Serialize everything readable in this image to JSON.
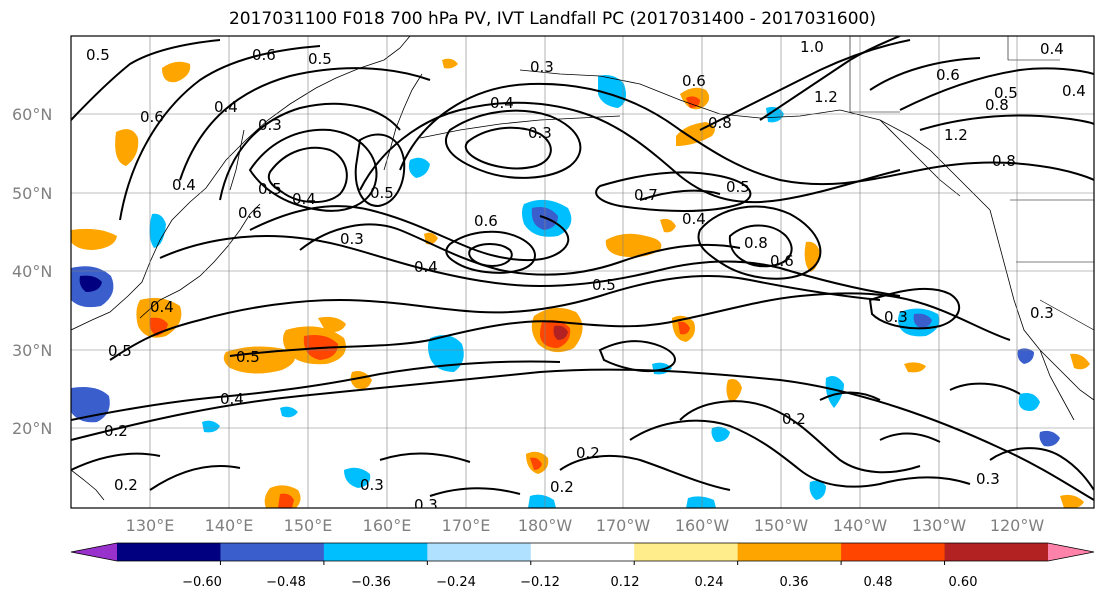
{
  "title": "2017031100 F018 700 hPa PV, IVT Landfall PC (2017031400 - 2017031600)",
  "lat_labels": [
    "60°N",
    "50°N",
    "40°N",
    "30°N",
    "20°N"
  ],
  "lon_labels": [
    "130°E",
    "140°E",
    "150°E",
    "160°E",
    "170°E",
    "180°W",
    "170°W",
    "160°W",
    "150°W",
    "140°W",
    "130°W",
    "120°W"
  ],
  "colorbar": {
    "colors": [
      "#9932cc",
      "#000080",
      "#3a5fcd",
      "#00bfff",
      "#b0e2ff",
      "#ffffff",
      "#ffec8b",
      "#ffa500",
      "#ff4500",
      "#b22222",
      "#ff82ab"
    ],
    "tick_labels": [
      "−0.60",
      "−0.48",
      "−0.36",
      "−0.24",
      "−0.12",
      "0.12",
      "0.24",
      "0.36",
      "0.48",
      "0.60"
    ]
  },
  "contour_labels": [
    "0.6",
    "0.5",
    "0.6",
    "0.4",
    "0.3",
    "0.6",
    "0.5",
    "0.4",
    "0.3",
    "0.4",
    "0.6",
    "0.5",
    "0.4",
    "0.3",
    "0.5",
    "0.4",
    "0.3",
    "0.5",
    "0.4",
    "0.7",
    "0.5",
    "0.4",
    "0.8",
    "0.6",
    "0.5",
    "0.3",
    "0.5",
    "0.4",
    "0.2",
    "0.2",
    "0.2",
    "0.2",
    "0.3",
    "0.2",
    "1.0",
    "1.2",
    "0.8",
    "0.6",
    "0.5",
    "0.8",
    "1.2",
    "0.8",
    "0.4",
    "0.4",
    "0.6",
    "0.3",
    "0.3",
    "0.3"
  ]
}
